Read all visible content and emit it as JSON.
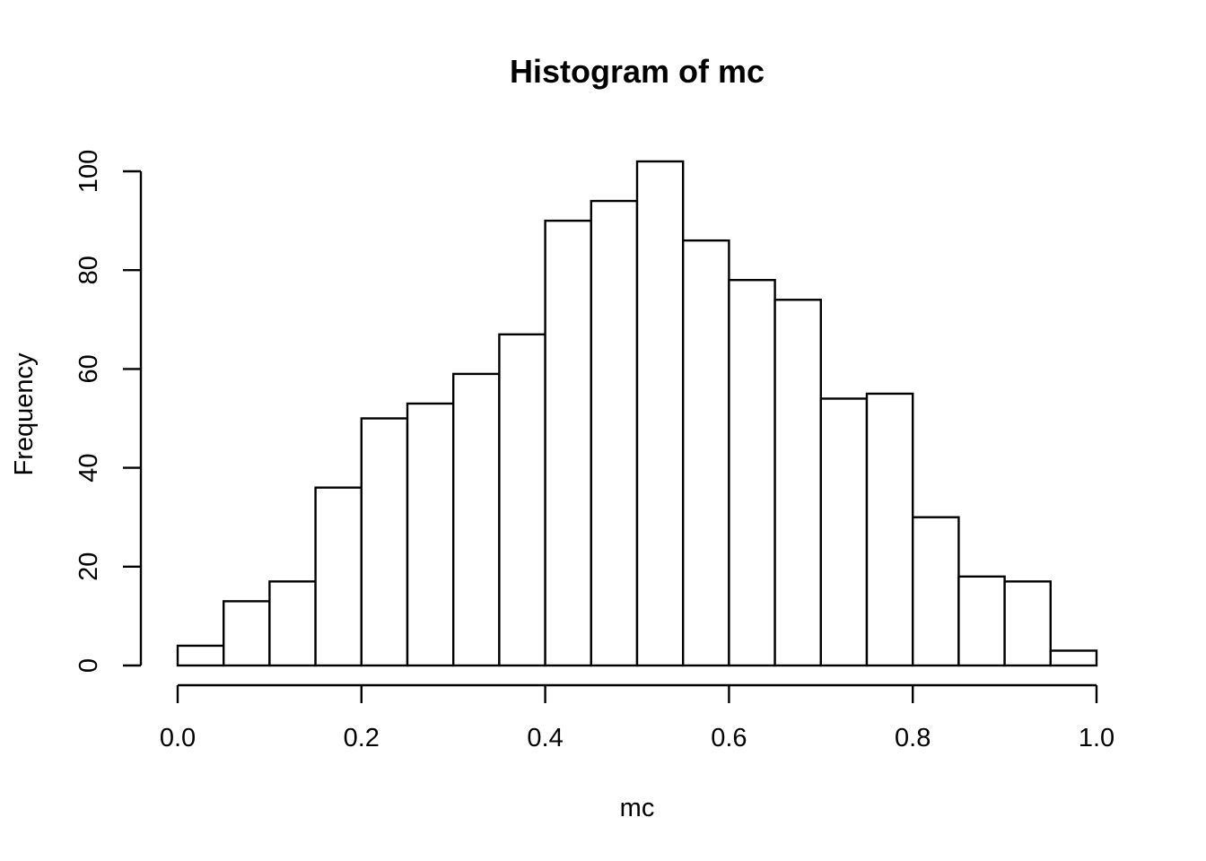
{
  "chart_data": {
    "type": "bar",
    "title": "Histogram of mc",
    "xlabel": "mc",
    "ylabel": "Frequency",
    "bin_edges": [
      0.0,
      0.05,
      0.1,
      0.15,
      0.2,
      0.25,
      0.3,
      0.35,
      0.4,
      0.45,
      0.5,
      0.55,
      0.6,
      0.65,
      0.7,
      0.75,
      0.8,
      0.85,
      0.9,
      0.95,
      1.0
    ],
    "values": [
      4,
      13,
      17,
      36,
      50,
      53,
      59,
      67,
      90,
      94,
      102,
      86,
      78,
      74,
      54,
      55,
      30,
      18,
      17,
      3
    ],
    "xlim": [
      0.0,
      1.0
    ],
    "ylim": [
      0,
      100
    ],
    "x_ticks": [
      "0.0",
      "0.2",
      "0.4",
      "0.6",
      "0.8",
      "1.0"
    ],
    "y_ticks": [
      "0",
      "20",
      "40",
      "60",
      "80",
      "100"
    ],
    "grid": false,
    "legend": false
  }
}
